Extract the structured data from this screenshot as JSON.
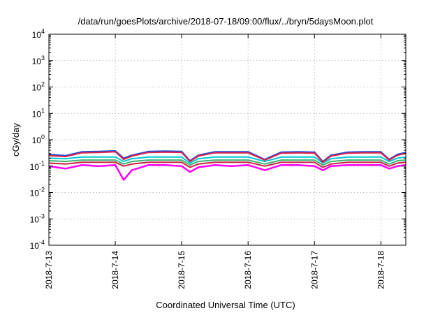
{
  "chart_data": {
    "type": "line",
    "title": "/data/run/goesPlots/archive/2018-07-18/09:00/flux/../bryn/5daysMoon.plot",
    "xlabel": "Coordinated Universal Time (UTC)",
    "ylabel": "cGy/day",
    "yscale": "log",
    "ylim": [
      0.0001,
      10000
    ],
    "y_ticks": [
      {
        "base": "10",
        "exp": "-4",
        "value": 0.0001
      },
      {
        "base": "10",
        "exp": "-3",
        "value": 0.001
      },
      {
        "base": "10",
        "exp": "-2",
        "value": 0.01
      },
      {
        "base": "10",
        "exp": "-1",
        "value": 0.1
      },
      {
        "base": "10",
        "exp": "0",
        "value": 1
      },
      {
        "base": "10",
        "exp": "1",
        "value": 10
      },
      {
        "base": "10",
        "exp": "2",
        "value": 100
      },
      {
        "base": "10",
        "exp": "3",
        "value": 1000
      },
      {
        "base": "10",
        "exp": "4",
        "value": 10000
      }
    ],
    "x_ticks": [
      "2018-7-13",
      "2018-7-14",
      "2018-7-15",
      "2018-7-16",
      "2018-7-17",
      "2018-7-18"
    ],
    "xlim": [
      "2018-07-13T00:00",
      "2018-07-18T09:00"
    ],
    "grid": true,
    "x": [
      "2018-07-13T00:00",
      "2018-07-13T06:00",
      "2018-07-13T12:00",
      "2018-07-13T18:00",
      "2018-07-14T00:00",
      "2018-07-14T03:00",
      "2018-07-14T06:00",
      "2018-07-14T12:00",
      "2018-07-14T18:00",
      "2018-07-15T00:00",
      "2018-07-15T03:00",
      "2018-07-15T06:00",
      "2018-07-15T12:00",
      "2018-07-15T18:00",
      "2018-07-16T00:00",
      "2018-07-16T06:00",
      "2018-07-16T12:00",
      "2018-07-16T18:00",
      "2018-07-17T00:00",
      "2018-07-17T03:00",
      "2018-07-17T06:00",
      "2018-07-17T12:00",
      "2018-07-17T18:00",
      "2018-07-18T00:00",
      "2018-07-18T03:00",
      "2018-07-18T06:00",
      "2018-07-18T09:00"
    ],
    "series": [
      {
        "color": "#ff00ff",
        "values": [
          0.1,
          0.08,
          0.11,
          0.1,
          0.11,
          0.03,
          0.07,
          0.11,
          0.11,
          0.1,
          0.06,
          0.09,
          0.11,
          0.1,
          0.11,
          0.07,
          0.11,
          0.11,
          0.1,
          0.07,
          0.1,
          0.11,
          0.11,
          0.11,
          0.08,
          0.1,
          0.11
        ]
      },
      {
        "color": "#cc2244",
        "values": [
          0.13,
          0.12,
          0.14,
          0.14,
          0.14,
          0.1,
          0.12,
          0.14,
          0.14,
          0.14,
          0.09,
          0.12,
          0.14,
          0.14,
          0.14,
          0.1,
          0.14,
          0.14,
          0.14,
          0.09,
          0.12,
          0.14,
          0.14,
          0.14,
          0.1,
          0.13,
          0.14
        ]
      },
      {
        "color": "#3cb371",
        "values": [
          0.16,
          0.15,
          0.17,
          0.17,
          0.17,
          0.12,
          0.15,
          0.17,
          0.17,
          0.17,
          0.11,
          0.15,
          0.17,
          0.17,
          0.17,
          0.12,
          0.17,
          0.17,
          0.17,
          0.11,
          0.15,
          0.17,
          0.17,
          0.17,
          0.12,
          0.16,
          0.17
        ]
      },
      {
        "color": "#00c8d2",
        "values": [
          0.2,
          0.19,
          0.22,
          0.22,
          0.22,
          0.15,
          0.19,
          0.22,
          0.22,
          0.22,
          0.13,
          0.19,
          0.22,
          0.22,
          0.22,
          0.15,
          0.22,
          0.22,
          0.22,
          0.13,
          0.19,
          0.22,
          0.22,
          0.22,
          0.15,
          0.2,
          0.22
        ]
      },
      {
        "color": "#1f4fd8",
        "values": [
          0.28,
          0.25,
          0.35,
          0.36,
          0.38,
          0.2,
          0.26,
          0.36,
          0.37,
          0.36,
          0.16,
          0.26,
          0.35,
          0.35,
          0.35,
          0.18,
          0.34,
          0.35,
          0.34,
          0.15,
          0.26,
          0.34,
          0.35,
          0.35,
          0.18,
          0.28,
          0.33
        ]
      },
      {
        "color": "#e0204a",
        "values": [
          0.25,
          0.23,
          0.32,
          0.33,
          0.35,
          0.18,
          0.24,
          0.33,
          0.34,
          0.33,
          0.15,
          0.24,
          0.32,
          0.32,
          0.32,
          0.17,
          0.31,
          0.32,
          0.31,
          0.14,
          0.24,
          0.31,
          0.32,
          0.32,
          0.17,
          0.26,
          0.3
        ]
      }
    ]
  }
}
